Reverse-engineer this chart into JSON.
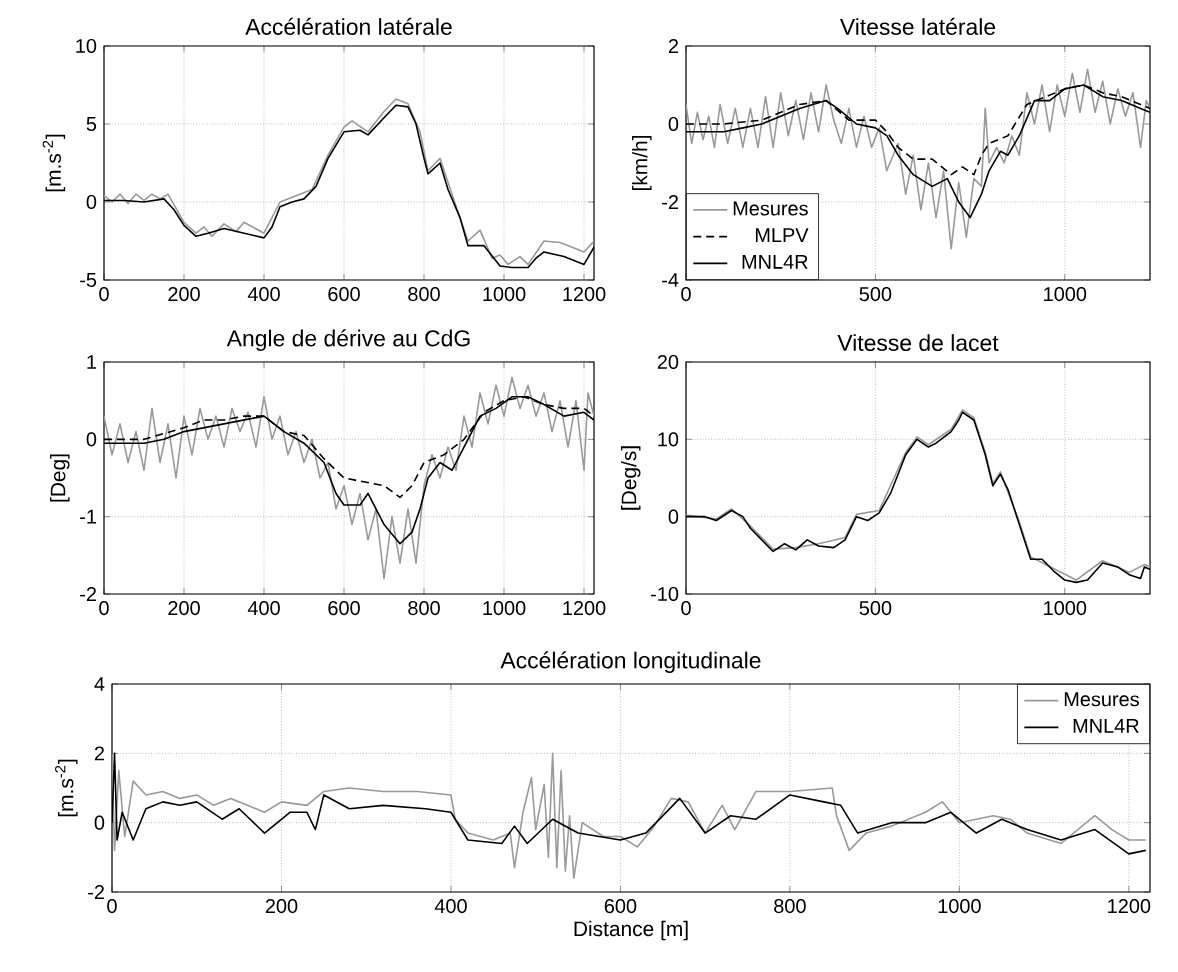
{
  "chart_data": [
    {
      "type": "line",
      "title": "Accélération latérale",
      "ylabel": "[m.s$^{-2}$]",
      "xlim": [
        0,
        1225
      ],
      "ylim": [
        -5,
        10
      ],
      "xticks": [
        0,
        200,
        400,
        600,
        800,
        1000,
        1200
      ],
      "yticks": [
        -5,
        0,
        5,
        10
      ],
      "grid": true,
      "marker": "none",
      "series": [
        {
          "color": "#999999",
          "line_style": "solid",
          "x": [
            0,
            20,
            40,
            60,
            80,
            100,
            120,
            140,
            160,
            200,
            230,
            250,
            270,
            300,
            330,
            350,
            400,
            440,
            480,
            520,
            560,
            600,
            620,
            660,
            700,
            730,
            760,
            790,
            810,
            840,
            870,
            910,
            940,
            970,
            990,
            1010,
            1040,
            1060,
            1100,
            1140,
            1180,
            1200,
            1225
          ],
          "values": [
            0.4,
            0,
            0.5,
            -0.1,
            0.5,
            0.1,
            0.5,
            0.2,
            0.5,
            -1.3,
            -2,
            -1.6,
            -2.2,
            -1.4,
            -1.9,
            -1.3,
            -2,
            0,
            0.4,
            0.8,
            3,
            4.8,
            5.2,
            4.5,
            5.8,
            6.6,
            6.3,
            4.5,
            2,
            2.8,
            0.5,
            -2.5,
            -1.8,
            -3.6,
            -3.4,
            -4,
            -3.5,
            -4,
            -2.5,
            -2.6,
            -3,
            -3.2,
            -2.5
          ]
        },
        {
          "color": "#000000",
          "line_style": "solid",
          "x": [
            0,
            50,
            100,
            150,
            175,
            200,
            230,
            260,
            300,
            350,
            400,
            420,
            440,
            470,
            500,
            530,
            560,
            600,
            640,
            660,
            700,
            730,
            760,
            780,
            800,
            810,
            840,
            860,
            890,
            910,
            950,
            990,
            1020,
            1060,
            1080,
            1100,
            1150,
            1200,
            1225
          ],
          "values": [
            0.1,
            0.1,
            0,
            0.2,
            -0.5,
            -1.5,
            -2.2,
            -2,
            -1.7,
            -2,
            -2.3,
            -1.6,
            -0.3,
            0,
            0.2,
            1,
            2.8,
            4.5,
            4.6,
            4.3,
            5.4,
            6.2,
            6.1,
            5,
            2.8,
            1.8,
            2.5,
            0.8,
            -1,
            -2.8,
            -2.8,
            -4.1,
            -4.2,
            -4.2,
            -3.6,
            -3.2,
            -3.5,
            -4,
            -2.9
          ]
        }
      ]
    },
    {
      "type": "line",
      "title": "Vitesse latérale",
      "ylabel": "[km/h]",
      "xlim": [
        0,
        1225
      ],
      "ylim": [
        -4,
        2
      ],
      "xticks": [
        0,
        500,
        1000
      ],
      "yticks": [
        -4,
        -2,
        0,
        2
      ],
      "grid": true,
      "marker": "none",
      "legend": "bottom left",
      "series": [
        {
          "name": "Mesures",
          "color": "#999999",
          "line_style": "solid",
          "x": [
            0,
            15,
            30,
            45,
            60,
            75,
            90,
            110,
            130,
            150,
            170,
            190,
            210,
            230,
            250,
            270,
            290,
            310,
            330,
            350,
            370,
            390,
            410,
            430,
            450,
            470,
            490,
            510,
            530,
            560,
            580,
            600,
            620,
            640,
            660,
            680,
            700,
            720,
            740,
            760,
            780,
            790,
            800,
            820,
            840,
            860,
            880,
            900,
            920,
            940,
            960,
            980,
            1000,
            1020,
            1040,
            1060,
            1080,
            1100,
            1120,
            1140,
            1160,
            1180,
            1200,
            1215,
            1225
          ],
          "values": [
            0.5,
            -0.5,
            0.3,
            -0.4,
            0.2,
            -0.6,
            0.5,
            -0.5,
            0.4,
            -0.6,
            0.4,
            -0.6,
            0.7,
            -0.6,
            0.8,
            -0.3,
            0.6,
            -0.4,
            0.8,
            -0.2,
            1.0,
            0.1,
            -0.5,
            0.4,
            -0.6,
            0.2,
            -0.6,
            -0.1,
            -1.2,
            -0.5,
            -1.8,
            -0.8,
            -2.2,
            -1.0,
            -2.4,
            -1.2,
            -3.2,
            -1.5,
            -2.9,
            -1.4,
            -1.6,
            0.4,
            -1.0,
            -0.6,
            -1.0,
            -0.3,
            -0.8,
            0.8,
            0.0,
            1.0,
            -0.2,
            1.0,
            0.2,
            1.3,
            0.3,
            1.4,
            0.3,
            1.1,
            0.0,
            0.9,
            0.2,
            0.8,
            -0.6,
            0.6,
            0.4
          ]
        },
        {
          "name": "MLPV",
          "color": "#000000",
          "line_style": "dashed",
          "x": [
            0,
            100,
            200,
            300,
            370,
            430,
            500,
            530,
            560,
            600,
            650,
            700,
            730,
            760,
            780,
            800,
            850,
            900,
            950,
            1000,
            1050,
            1100,
            1150,
            1200,
            1225
          ],
          "values": [
            0,
            0,
            0.1,
            0.5,
            0.6,
            0.1,
            0.1,
            -0.2,
            -0.6,
            -0.9,
            -0.9,
            -1.3,
            -1.1,
            -1.3,
            -0.8,
            -0.5,
            -0.3,
            0.5,
            0.7,
            0.9,
            1,
            0.8,
            0.7,
            0.5,
            0.4
          ]
        },
        {
          "name": "MNL4R",
          "color": "#000000",
          "line_style": "solid",
          "x": [
            0,
            100,
            150,
            200,
            250,
            300,
            370,
            400,
            450,
            500,
            530,
            560,
            600,
            650,
            690,
            720,
            750,
            780,
            800,
            830,
            850,
            880,
            920,
            960,
            1000,
            1050,
            1100,
            1150,
            1200,
            1225
          ],
          "values": [
            -0.2,
            -0.2,
            -0.1,
            0,
            0.2,
            0.4,
            0.6,
            0.4,
            0,
            -0.1,
            -0.3,
            -0.8,
            -1.3,
            -1.6,
            -1.4,
            -2,
            -2.4,
            -1.8,
            -1.2,
            -0.7,
            -0.8,
            -0.3,
            0.6,
            0.6,
            0.9,
            1,
            0.7,
            0.6,
            0.4,
            0.3
          ]
        }
      ]
    },
    {
      "type": "line",
      "title": "Angle de dérive au CdG",
      "ylabel": "[Deg]",
      "xlim": [
        0,
        1225
      ],
      "ylim": [
        -2,
        1
      ],
      "xticks": [
        0,
        200,
        400,
        600,
        800,
        1000,
        1200
      ],
      "yticks": [
        -2,
        -1,
        0,
        1
      ],
      "grid": true,
      "marker": "none",
      "series": [
        {
          "color": "#999999",
          "line_style": "solid",
          "x": [
            0,
            20,
            40,
            60,
            80,
            100,
            120,
            140,
            160,
            180,
            200,
            220,
            240,
            260,
            280,
            300,
            320,
            340,
            360,
            380,
            400,
            420,
            440,
            460,
            480,
            500,
            520,
            540,
            560,
            580,
            600,
            620,
            640,
            660,
            680,
            700,
            720,
            740,
            760,
            780,
            800,
            820,
            840,
            860,
            880,
            900,
            920,
            940,
            960,
            980,
            1000,
            1020,
            1040,
            1060,
            1080,
            1100,
            1120,
            1140,
            1160,
            1180,
            1200,
            1210,
            1225
          ],
          "values": [
            0.3,
            -0.2,
            0.2,
            -0.3,
            0.1,
            -0.4,
            0.4,
            -0.3,
            0.2,
            -0.5,
            0.3,
            -0.2,
            0.4,
            0,
            0.3,
            -0.1,
            0.4,
            0.1,
            0.35,
            -0.1,
            0.55,
            0,
            0.3,
            -0.2,
            0.1,
            -0.3,
            0,
            -0.5,
            -0.3,
            -0.9,
            -0.6,
            -1.1,
            -0.7,
            -1.3,
            -0.9,
            -1.8,
            -1.0,
            -1.6,
            -0.9,
            -1.6,
            -0.6,
            -0.2,
            -0.5,
            -0.1,
            -0.4,
            0.3,
            -0.1,
            0.6,
            0.2,
            0.7,
            0.3,
            0.8,
            0.4,
            0.7,
            0.3,
            0.6,
            0.1,
            0.5,
            -0.1,
            0.5,
            -0.4,
            0.6,
            0.3
          ]
        },
        {
          "color": "#000000",
          "line_style": "dashed",
          "x": [
            0,
            100,
            200,
            250,
            300,
            350,
            400,
            450,
            500,
            550,
            600,
            650,
            700,
            740,
            770,
            800,
            850,
            900,
            950,
            1000,
            1050,
            1100,
            1150,
            1200,
            1225
          ],
          "values": [
            0,
            0,
            0.15,
            0.25,
            0.25,
            0.3,
            0.3,
            0.1,
            0.05,
            -0.25,
            -0.5,
            -0.55,
            -0.6,
            -0.75,
            -0.6,
            -0.3,
            -0.2,
            0,
            0.35,
            0.5,
            0.55,
            0.45,
            0.4,
            0.4,
            0.3
          ]
        },
        {
          "color": "#000000",
          "line_style": "solid",
          "x": [
            0,
            100,
            150,
            200,
            250,
            300,
            350,
            400,
            450,
            500,
            550,
            580,
            600,
            640,
            660,
            700,
            740,
            770,
            790,
            810,
            840,
            870,
            900,
            940,
            980,
            1020,
            1060,
            1100,
            1150,
            1200,
            1225
          ],
          "values": [
            -0.05,
            -0.05,
            0,
            0.1,
            0.15,
            0.2,
            0.25,
            0.3,
            0.1,
            -0.05,
            -0.3,
            -0.7,
            -0.85,
            -0.85,
            -0.7,
            -1.1,
            -1.35,
            -1.2,
            -0.9,
            -0.5,
            -0.3,
            -0.4,
            -0.1,
            0.3,
            0.4,
            0.55,
            0.55,
            0.45,
            0.3,
            0.35,
            0.25
          ]
        }
      ]
    },
    {
      "type": "line",
      "title": "Vitesse de lacet",
      "ylabel": "[Deg/s]",
      "xlim": [
        0,
        1225
      ],
      "ylim": [
        -10,
        20
      ],
      "xticks": [
        0,
        500,
        1000
      ],
      "yticks": [
        -10,
        0,
        10,
        20
      ],
      "grid": true,
      "marker": "none",
      "series": [
        {
          "color": "#999999",
          "line_style": "solid",
          "x": [
            0,
            80,
            120,
            170,
            230,
            290,
            350,
            420,
            450,
            510,
            580,
            610,
            640,
            700,
            730,
            760,
            790,
            810,
            830,
            880,
            910,
            970,
            1030,
            1100,
            1170,
            1210,
            1225
          ],
          "values": [
            0.2,
            -0.3,
            1,
            -1.2,
            -4.2,
            -4,
            -3.5,
            -2.7,
            0.3,
            0.8,
            8.3,
            10.3,
            9.3,
            11.3,
            13.8,
            12.8,
            8.3,
            4.3,
            5.8,
            -0.7,
            -5.2,
            -6.7,
            -8.2,
            -5.7,
            -7.2,
            -6.2,
            -6.5
          ]
        },
        {
          "color": "#000000",
          "line_style": "solid",
          "x": [
            0,
            50,
            80,
            120,
            150,
            170,
            200,
            230,
            260,
            290,
            320,
            350,
            390,
            420,
            450,
            480,
            510,
            540,
            580,
            610,
            640,
            660,
            700,
            720,
            730,
            760,
            790,
            810,
            830,
            850,
            880,
            910,
            940,
            970,
            1000,
            1030,
            1060,
            1100,
            1140,
            1170,
            1200,
            1210,
            1225
          ],
          "values": [
            0,
            0,
            -0.5,
            0.8,
            0,
            -1.5,
            -3,
            -4.5,
            -3.5,
            -4.3,
            -3,
            -3.8,
            -4,
            -3,
            0,
            -0.5,
            0.5,
            3,
            8,
            10,
            9,
            9.5,
            11,
            12.5,
            13.5,
            12.5,
            8,
            4,
            5.5,
            3.5,
            -1,
            -5.5,
            -5.5,
            -7,
            -8.2,
            -8.5,
            -8.2,
            -6,
            -6.5,
            -7.5,
            -8,
            -6.5,
            -6.8
          ]
        }
      ]
    },
    {
      "type": "line",
      "title": "Accélération longitudinale",
      "xlabel": "Distance [m]",
      "ylabel": "[m.s$^{-2}$]",
      "xlim": [
        0,
        1225
      ],
      "ylim": [
        -2,
        4
      ],
      "xticks": [
        0,
        200,
        400,
        600,
        800,
        1000,
        1200
      ],
      "yticks": [
        -2,
        0,
        2,
        4
      ],
      "grid": true,
      "marker": "none",
      "legend": "top right",
      "series": [
        {
          "name": "Mesures",
          "color": "#999999",
          "line_style": "solid",
          "x": [
            0,
            3,
            8,
            15,
            25,
            40,
            60,
            80,
            100,
            120,
            140,
            160,
            180,
            200,
            230,
            250,
            280,
            320,
            360,
            400,
            405,
            420,
            450,
            470,
            475,
            485,
            495,
            500,
            510,
            515,
            520,
            525,
            530,
            535,
            540,
            545,
            555,
            580,
            600,
            620,
            640,
            660,
            680,
            700,
            720,
            735,
            760,
            800,
            850,
            855,
            870,
            890,
            920,
            960,
            980,
            1000,
            1040,
            1060,
            1080,
            1120,
            1160,
            1180,
            1200,
            1220
          ],
          "values": [
            2,
            -0.8,
            1.5,
            -0.4,
            1.2,
            0.8,
            0.9,
            0.7,
            0.8,
            0.5,
            0.7,
            0.5,
            0.3,
            0.6,
            0.5,
            0.9,
            1.0,
            0.9,
            0.9,
            0.8,
            0.1,
            -0.3,
            -0.5,
            -0.3,
            -1.3,
            0.3,
            1.3,
            -0.2,
            1.1,
            -1.0,
            2.0,
            -1.3,
            1.5,
            -1.4,
            0.2,
            -1.6,
            0.0,
            -0.4,
            -0.4,
            -0.7,
            -0.1,
            0.7,
            0.6,
            -0.3,
            0.5,
            -0.2,
            0.9,
            0.9,
            1.0,
            0.2,
            -0.8,
            -0.3,
            -0.1,
            0.3,
            0.6,
            0.0,
            0.2,
            0.1,
            -0.3,
            -0.6,
            0.2,
            -0.2,
            -0.5,
            -0.5
          ]
        },
        {
          "name": "MNL4R",
          "color": "#000000",
          "line_style": "solid",
          "x": [
            0,
            3,
            6,
            12,
            25,
            40,
            60,
            80,
            100,
            130,
            150,
            180,
            210,
            230,
            240,
            250,
            280,
            320,
            370,
            400,
            420,
            460,
            475,
            490,
            520,
            550,
            600,
            630,
            650,
            670,
            700,
            730,
            760,
            800,
            840,
            860,
            880,
            920,
            960,
            990,
            1020,
            1050,
            1080,
            1120,
            1160,
            1200,
            1220
          ],
          "values": [
            0,
            2,
            -0.5,
            0.3,
            -0.5,
            0.4,
            0.6,
            0.5,
            0.6,
            0.1,
            0.4,
            -0.3,
            0.3,
            0.3,
            -0.2,
            0.8,
            0.4,
            0.5,
            0.4,
            0.3,
            -0.5,
            -0.6,
            -0.1,
            -0.6,
            0.1,
            -0.3,
            -0.5,
            -0.3,
            0.2,
            0.7,
            -0.3,
            0.2,
            0.1,
            0.8,
            0.6,
            0.5,
            -0.3,
            0.0,
            0.0,
            0.3,
            -0.3,
            0.1,
            -0.2,
            -0.5,
            -0.2,
            -0.9,
            -0.8
          ]
        }
      ]
    }
  ]
}
